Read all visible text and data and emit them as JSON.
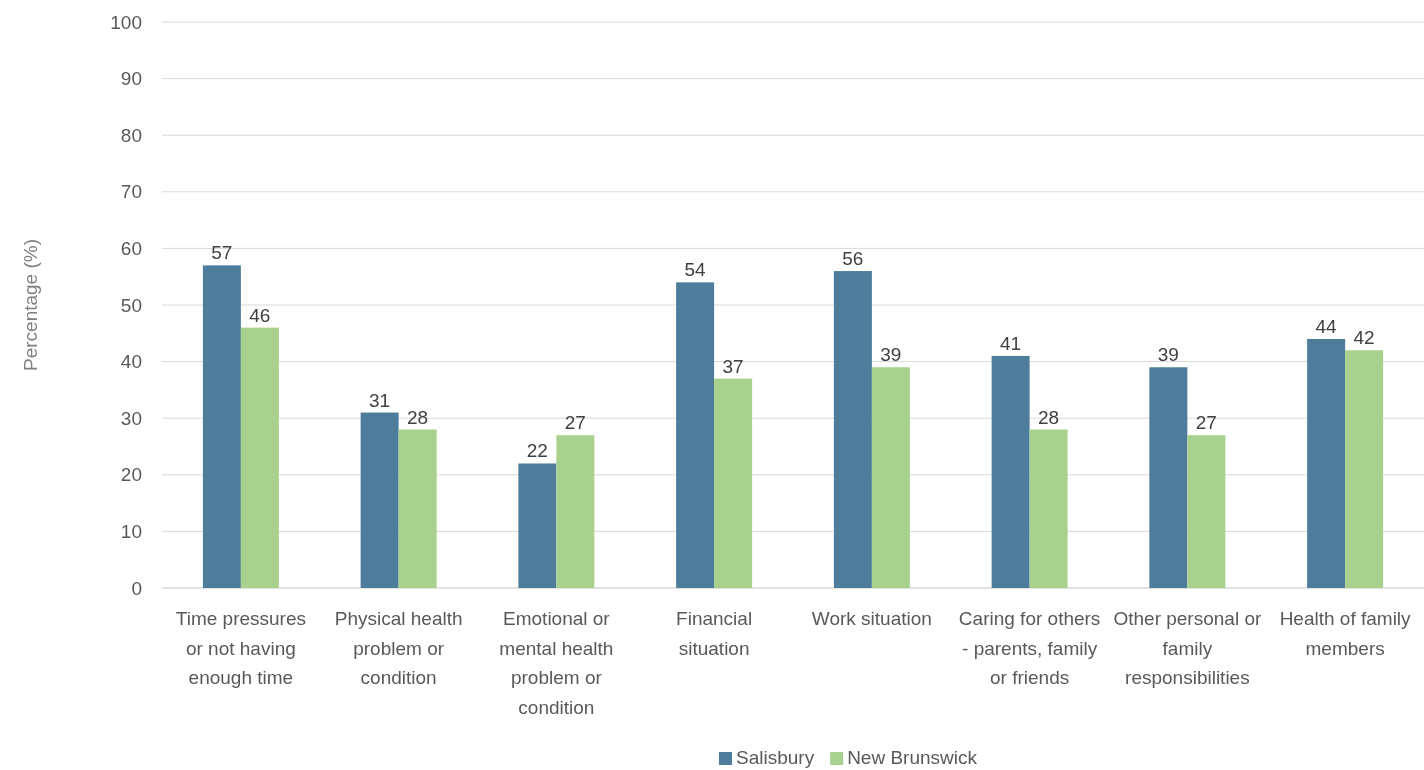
{
  "chart_data": {
    "type": "bar",
    "ylabel": "Percentage (%)",
    "categories": [
      "Time pressures or not having enough time",
      "Physical health problem or condition",
      "Emotional or mental health problem or condition",
      "Financial situation",
      "Work situation",
      "Caring for others - parents, family or friends",
      "Other personal or family responsibilities",
      "Health of family members"
    ],
    "series": [
      {
        "name": "Salisbury",
        "color": "#4e7d9c",
        "values": [
          57,
          31,
          22,
          54,
          56,
          41,
          39,
          44
        ]
      },
      {
        "name": "New Brunswick",
        "color": "#a9d18e",
        "values": [
          46,
          28,
          27,
          37,
          39,
          28,
          27,
          42
        ]
      }
    ],
    "ylim": [
      0,
      100
    ],
    "yticks": [
      0,
      10,
      20,
      30,
      40,
      50,
      60,
      70,
      80,
      90,
      100
    ],
    "grid": "y",
    "legend": "bottom",
    "data_labels": true
  }
}
